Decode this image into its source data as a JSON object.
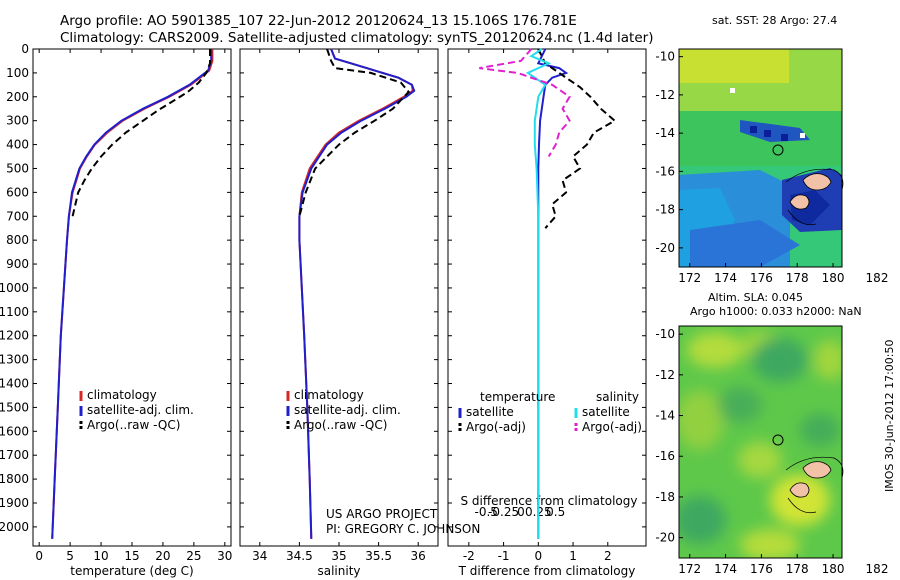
{
  "header": {
    "line1": "Argo profile: AO 5901385_107 22-Jun-2012 20120624_13 15.106S 176.781E",
    "line2": "Climatology: CARS2009. Satellite-adjusted climatology: synTS_20120624.nc (1.4d later)"
  },
  "credits": {
    "line1": "US ARGO PROJECT",
    "line2": "PI: GREGORY C. JOHNSON"
  },
  "footer": {
    "vertical": "IMOS 30-Jun-2012 17:00:50"
  },
  "colors": {
    "climatology": "#d62728",
    "satellite": "#1f1fcc",
    "argo": "#000000",
    "sat_salinity": "#22ddee",
    "argo_salinity": "#e020d0",
    "land": "#f2c2a8"
  },
  "chart_data": [
    {
      "type": "line",
      "id": "temperature",
      "xlabel": "temperature (deg C)",
      "ylabel": "",
      "xlim": [
        -1,
        31
      ],
      "ylim": [
        0,
        2080
      ],
      "y_inverted": true,
      "xticks": [
        0,
        5,
        10,
        15,
        20,
        25,
        30
      ],
      "yticks": [
        0,
        100,
        200,
        300,
        400,
        500,
        600,
        700,
        800,
        900,
        1000,
        1100,
        1200,
        1300,
        1400,
        1500,
        1600,
        1700,
        1800,
        1900,
        2000
      ],
      "legend": [
        "climatology",
        "satellite-adj. clim.",
        "Argo(..raw -QC)"
      ],
      "series": [
        {
          "name": "climatology",
          "color": "#d62728",
          "dash": "solid",
          "depth": [
            0,
            50,
            90,
            120,
            150,
            200,
            250,
            300,
            350,
            400,
            450,
            500,
            600,
            700,
            800,
            1000,
            1200,
            1500,
            1800,
            2050
          ],
          "values": [
            28,
            28,
            27.5,
            26,
            24.5,
            21,
            17,
            13.5,
            11,
            9,
            7.7,
            6.6,
            5.4,
            4.8,
            4.5,
            4.0,
            3.5,
            3.0,
            2.5,
            2.1
          ]
        },
        {
          "name": "satellite-adj. clim.",
          "color": "#1f1fcc",
          "dash": "solid",
          "depth": [
            0,
            50,
            90,
            120,
            150,
            200,
            250,
            300,
            350,
            400,
            450,
            500,
            600,
            700,
            800,
            1000,
            1200,
            1500,
            1800,
            2050
          ],
          "values": [
            27.8,
            27.8,
            27.3,
            25.8,
            24.3,
            20.8,
            16.8,
            13.3,
            10.8,
            8.9,
            7.6,
            6.5,
            5.3,
            4.8,
            4.5,
            4.0,
            3.5,
            3.0,
            2.5,
            2.1
          ]
        },
        {
          "name": "Argo(..raw -QC)",
          "color": "#000000",
          "dash": "dashed",
          "depth": [
            0,
            60,
            100,
            140,
            180,
            220,
            260,
            300,
            350,
            400,
            450,
            500,
            550,
            600,
            700
          ],
          "values": [
            27.6,
            27.6,
            27,
            25.8,
            24,
            21.5,
            19,
            16.8,
            14,
            11.8,
            10,
            8.5,
            7.3,
            6.3,
            5.4
          ]
        }
      ]
    },
    {
      "type": "line",
      "id": "salinity",
      "xlabel": "salinity",
      "ylabel": "",
      "xlim": [
        33.75,
        36.25
      ],
      "ylim": [
        0,
        2080
      ],
      "y_inverted": true,
      "xticks": [
        34,
        34.5,
        35,
        35.5,
        36
      ],
      "legend": [
        "climatology",
        "satellite-adj. clim.",
        "Argo(..raw -QC)"
      ],
      "series": [
        {
          "name": "climatology",
          "color": "#d62728",
          "dash": "solid",
          "depth": [
            0,
            40,
            80,
            120,
            150,
            175,
            200,
            250,
            300,
            350,
            400,
            500,
            600,
            700,
            800,
            1000,
            1200,
            1500,
            1800,
            2050
          ],
          "values": [
            34.9,
            34.95,
            35.35,
            35.75,
            35.92,
            35.93,
            35.82,
            35.55,
            35.25,
            35.0,
            34.83,
            34.63,
            34.53,
            34.5,
            34.5,
            34.53,
            34.56,
            34.6,
            34.63,
            34.65
          ]
        },
        {
          "name": "satellite-adj. clim.",
          "color": "#1f1fcc",
          "dash": "solid",
          "depth": [
            0,
            40,
            80,
            120,
            150,
            175,
            200,
            250,
            300,
            350,
            400,
            500,
            600,
            700,
            800,
            1000,
            1200,
            1500,
            1800,
            2050
          ],
          "values": [
            34.9,
            34.95,
            35.35,
            35.75,
            35.92,
            35.95,
            35.85,
            35.58,
            35.28,
            35.03,
            34.85,
            34.65,
            34.54,
            34.5,
            34.5,
            34.53,
            34.56,
            34.6,
            34.63,
            34.65
          ]
        },
        {
          "name": "Argo(..raw -QC)",
          "color": "#000000",
          "dash": "dashed",
          "depth": [
            0,
            50,
            80,
            100,
            140,
            180,
            200,
            250,
            300,
            350,
            400,
            450,
            500,
            600,
            700
          ],
          "values": [
            34.85,
            34.9,
            34.95,
            35.4,
            35.78,
            35.88,
            35.82,
            35.68,
            35.45,
            35.2,
            35.0,
            34.85,
            34.7,
            34.58,
            34.5
          ]
        }
      ]
    },
    {
      "type": "line",
      "id": "differences",
      "xlabel": "T difference from climatology",
      "xlabel2": "S difference from climatology",
      "xlim": [
        -2.6,
        3.1
      ],
      "ylim": [
        0,
        2080
      ],
      "y_inverted": true,
      "xticks": [
        -2,
        -1,
        0,
        1,
        2
      ],
      "xticks2": {
        "positions": [
          -1.5,
          -1,
          -0.5,
          0,
          0.5,
          1
        ],
        "labels": [
          "-0.5",
          "-0.25",
          "0",
          "0.25",
          "0.5",
          ""
        ]
      },
      "legend": [
        "temperature",
        "satellite",
        "Argo(-adj)",
        "salinity",
        "satellite",
        "Argo(-adj)"
      ],
      "series": [
        {
          "name": "satellite",
          "color": "#1f1fcc",
          "dash": "solid",
          "depth": [
            0,
            30,
            60,
            80,
            100,
            120,
            150,
            200,
            250,
            300,
            400,
            500,
            700,
            1000,
            1300,
            1600,
            2050
          ],
          "values": [
            0.2,
            0.1,
            0.0,
            0.6,
            0.8,
            0.4,
            0.2,
            0.15,
            0.1,
            0.05,
            0.02,
            0.0,
            0.0,
            0.0,
            0.0,
            0.0,
            0.0
          ]
        },
        {
          "name": "Argo(-adj)",
          "color": "#000000",
          "dash": "dashed",
          "depth": [
            0,
            60,
            90,
            120,
            160,
            200,
            250,
            300,
            350,
            400,
            450,
            500,
            550,
            600,
            650,
            700,
            750
          ],
          "values": [
            0,
            0.2,
            0.5,
            0.8,
            1.2,
            1.5,
            1.8,
            2.2,
            1.6,
            1.4,
            1.0,
            1.2,
            0.7,
            0.8,
            0.4,
            0.5,
            0.2
          ]
        },
        {
          "name": "salinity satellite",
          "color": "#22ddee",
          "dash": "solid",
          "depth": [
            0,
            30,
            60,
            100,
            150,
            200,
            300,
            400,
            500,
            700,
            1000,
            1500,
            2050
          ],
          "values": [
            0.1,
            -0.2,
            0.3,
            -0.3,
            0.2,
            0.0,
            -0.1,
            -0.1,
            -0.05,
            0,
            0,
            0,
            0
          ]
        },
        {
          "name": "salinity Argo(-adj)",
          "color": "#e020d0",
          "dash": "dashed",
          "depth": [
            0,
            50,
            80,
            100,
            150,
            200,
            250,
            300,
            350,
            400,
            450
          ],
          "values": [
            -0.2,
            -0.5,
            -1.7,
            -0.6,
            0.4,
            0.9,
            0.7,
            0.9,
            0.6,
            0.5,
            0.3
          ]
        }
      ]
    }
  ],
  "maps": [
    {
      "id": "sst-map",
      "title": "sat. SST: 28 Argo: 27.4",
      "title2": "",
      "xticks": [
        172,
        174,
        176,
        178,
        180,
        182
      ],
      "yticks": [
        -10,
        -12,
        -14,
        -16,
        -18,
        -20
      ],
      "xlim": [
        171.4,
        182
      ],
      "ylim": [
        -21,
        -9.6
      ],
      "profile": {
        "lon": 176.781,
        "lat": -15.106
      }
    },
    {
      "id": "sla-map",
      "title": "Altim. SLA: 0.045",
      "title2": "Argo h1000: 0.033 h2000: NaN",
      "xticks": [
        172,
        174,
        176,
        178,
        180,
        182
      ],
      "yticks": [
        -10,
        -12,
        -14,
        -16,
        -18,
        -20
      ],
      "xlim": [
        171.4,
        182
      ],
      "ylim": [
        -21,
        -9.6
      ],
      "profile": {
        "lon": 176.781,
        "lat": -15.106
      }
    }
  ]
}
